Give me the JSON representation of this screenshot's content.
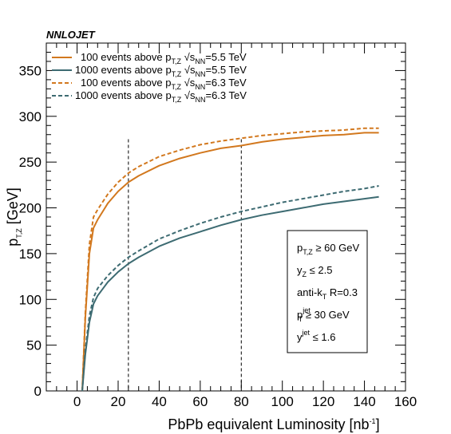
{
  "brand_label": "NNLOJET",
  "colors": {
    "orange": "#d2781e",
    "teal": "#3d6b72",
    "axis": "#000000"
  },
  "chart_data": {
    "type": "line",
    "title": "",
    "xlabel": {
      "text": "PbPb equivalent Luminosity [nb",
      "sup": "-1",
      "tail": "]"
    },
    "ylabel": {
      "text": "p",
      "sub": "T,Z",
      "tail": " [GeV]"
    },
    "xlim": [
      -15,
      160
    ],
    "ylim": [
      0,
      380
    ],
    "xticks": [
      0,
      20,
      40,
      60,
      80,
      100,
      120,
      140,
      160
    ],
    "yticks": [
      0,
      50,
      100,
      150,
      200,
      250,
      300,
      350
    ],
    "grid": false,
    "vlines": [
      25,
      80
    ],
    "series": [
      {
        "legend": {
          "text": "100 events above p",
          "sub": "T,Z",
          "root": "s",
          "rootsub": "NN",
          "tail": "=5.5 TeV"
        },
        "color": "orange",
        "dashed": false,
        "x": [
          2.5,
          4,
          6,
          8,
          10,
          15,
          20,
          25,
          30,
          40,
          50,
          60,
          70,
          80,
          90,
          100,
          110,
          120,
          130,
          140,
          147
        ],
        "y": [
          0,
          80,
          150,
          178,
          187,
          205,
          218,
          228,
          235,
          246,
          254,
          260,
          265,
          268,
          272,
          275,
          277,
          279,
          280,
          282,
          282
        ]
      },
      {
        "legend": {
          "text": "1000 events above p",
          "sub": "T,Z",
          "root": "s",
          "rootsub": "NN",
          "tail": "=5.5 TeV"
        },
        "color": "teal",
        "dashed": false,
        "x": [
          2.5,
          4,
          6,
          8,
          10,
          15,
          20,
          25,
          30,
          40,
          50,
          60,
          70,
          80,
          90,
          100,
          110,
          120,
          130,
          140,
          147
        ],
        "y": [
          0,
          40,
          75,
          95,
          104,
          119,
          130,
          139,
          146,
          158,
          167,
          174,
          181,
          187,
          192,
          196,
          200,
          204,
          207,
          210,
          212
        ]
      },
      {
        "legend": {
          "text": "100 events above p",
          "sub": "T,Z",
          "root": "s",
          "rootsub": "NN",
          "tail": "=6.3 TeV"
        },
        "color": "orange",
        "dashed": true,
        "x": [
          2.5,
          4,
          6,
          8,
          10,
          15,
          20,
          25,
          30,
          40,
          50,
          60,
          70,
          80,
          90,
          100,
          110,
          120,
          130,
          140,
          147
        ],
        "y": [
          0,
          85,
          160,
          190,
          198,
          215,
          228,
          238,
          245,
          256,
          263,
          269,
          273,
          276,
          279,
          281,
          283,
          284,
          285,
          287,
          287
        ]
      },
      {
        "legend": {
          "text": "1000 events above p",
          "sub": "T,Z",
          "root": "s",
          "rootsub": "NN",
          "tail": "=6.3 TeV"
        },
        "color": "teal",
        "dashed": true,
        "x": [
          2.5,
          4,
          6,
          8,
          10,
          15,
          20,
          25,
          30,
          40,
          50,
          60,
          70,
          80,
          90,
          100,
          110,
          120,
          130,
          140,
          147
        ],
        "y": [
          0,
          45,
          82,
          102,
          112,
          126,
          137,
          146,
          153,
          166,
          175,
          183,
          190,
          196,
          201,
          206,
          210,
          214,
          218,
          221,
          224
        ]
      }
    ],
    "cuts_box": [
      {
        "base": "p",
        "sub": "T,Z",
        "sup": "",
        "tail": " ≥ 60 GeV"
      },
      {
        "base": "y",
        "sub": "Z",
        "sup": "",
        "tail": " ≤ 2.5"
      },
      {
        "base": "anti-k",
        "sub": "T",
        "sup": "",
        "tail": " R=0.3"
      },
      {
        "base": "p",
        "sub": "T",
        "sup": "jet",
        "tail": " ≥ 30 GeV"
      },
      {
        "base": "y",
        "sub": "",
        "sup": "jet",
        "tail": " ≤ 1.6"
      }
    ]
  }
}
